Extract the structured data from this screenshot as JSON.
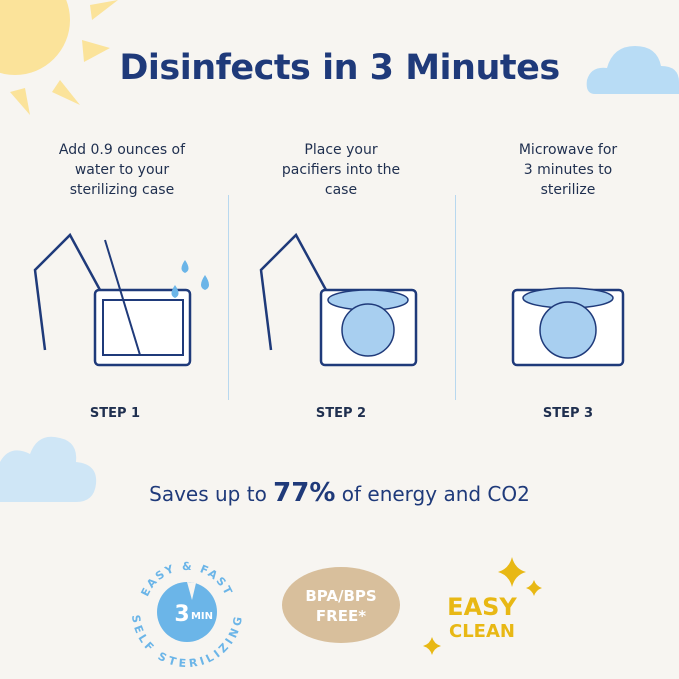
{
  "title": "Disinfects in 3 Minutes",
  "steps": [
    {
      "text": "Add 0.9 ounces of water to your sterilizing case",
      "label": "STEP 1"
    },
    {
      "text": "Place your pacifiers into the case",
      "label": "STEP 2"
    },
    {
      "text": "Microwave for 3 minutes to sterilize",
      "label": "STEP 3"
    }
  ],
  "savings": {
    "prefix": "Saves up to",
    "value": "77%",
    "suffix": "of energy and CO2"
  },
  "badges": {
    "fast": {
      "top": "EASY & FAST",
      "center": "3",
      "unit": "MIN",
      "bottom": "SELF STERILIZING"
    },
    "bpa": {
      "line1": "BPA/BPS",
      "line2": "FREE*"
    },
    "clean": {
      "line1": "EASY",
      "line2": "CLEAN"
    }
  },
  "colors": {
    "navy": "#1f3a7a",
    "sun": "#fbe39a",
    "cloud": "#b8dcf5",
    "badge_blue": "#6bb5e8",
    "badge_tan": "#d8bf9c",
    "clean_yellow": "#e8b814"
  }
}
